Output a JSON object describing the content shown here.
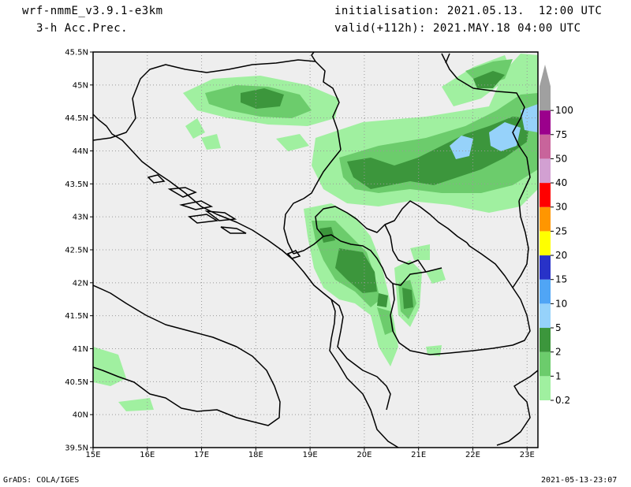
{
  "header": {
    "model": "wrf-nmmE_v3.9.1-e3km",
    "field": "3-h Acc.Prec.",
    "initialisation": "initialisation: 2021.05.13.  12:00 UTC",
    "valid": "valid(+112h): 2021.MAY.18 04:00 UTC"
  },
  "footer": {
    "left": "GrADS: COLA/IGES",
    "right": "2021-05-13-23:07"
  },
  "map": {
    "lon_range": [
      15,
      23.2
    ],
    "lat_range": [
      39.5,
      45.5
    ],
    "lon_labels": [
      "15E",
      "16E",
      "17E",
      "18E",
      "19E",
      "20E",
      "21E",
      "22E",
      "23E"
    ],
    "lat_labels": [
      "45.5N",
      "45N",
      "44.5N",
      "44N",
      "43.5N",
      "43N",
      "42.5N",
      "42N",
      "41.5N",
      "41N",
      "40.5N",
      "40N",
      "39.5N"
    ],
    "grid": "dotted",
    "background_color": "#eeeeee"
  },
  "colorbar": {
    "labels": [
      "0.2",
      "1",
      "2",
      "5",
      "10",
      "15",
      "20",
      "25",
      "30",
      "40",
      "50",
      "75",
      "100"
    ],
    "colors": [
      "#a0f0a0",
      "#6ccc6c",
      "#3c963c",
      "#96d2fa",
      "#50a5f5",
      "#2832c8",
      "#ffff00",
      "#ff9600",
      "#ff0000",
      "#d2a0d2",
      "#c8649b",
      "#9b008c",
      "#a0a0a0"
    ]
  }
}
